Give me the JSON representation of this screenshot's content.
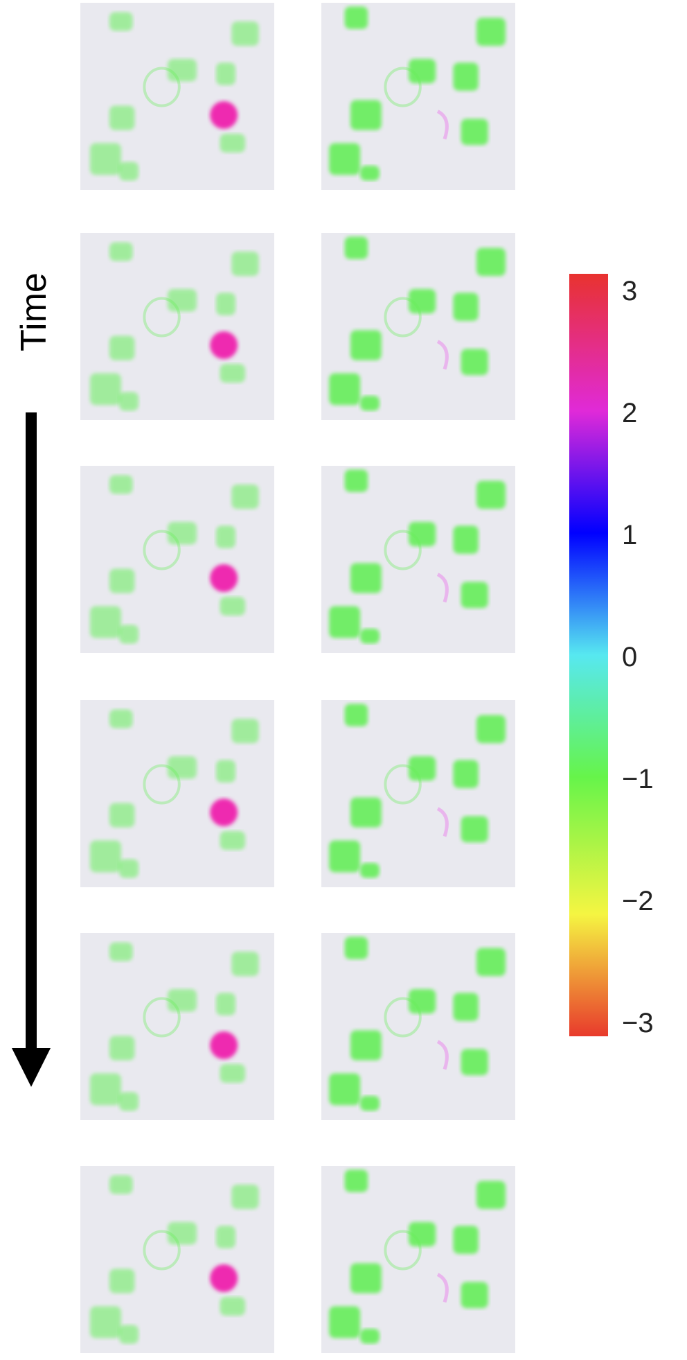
{
  "time_axis": {
    "label": "Time"
  },
  "colorbar": {
    "ticks": [
      "3",
      "2",
      "1",
      "0",
      "−1",
      "−2",
      "−3"
    ],
    "range": [
      -3,
      3
    ],
    "colors": [
      "#e8322f",
      "#e02ad8",
      "#0000ff",
      "#57e8f0",
      "#66f44a",
      "#f5f542",
      "#e83a2c"
    ]
  },
  "panels": {
    "background_color": "#e9e9ef",
    "blob_green": "#66ee5a",
    "blob_magenta": "#ee2ab0",
    "rows": 6,
    "columns": 2
  }
}
